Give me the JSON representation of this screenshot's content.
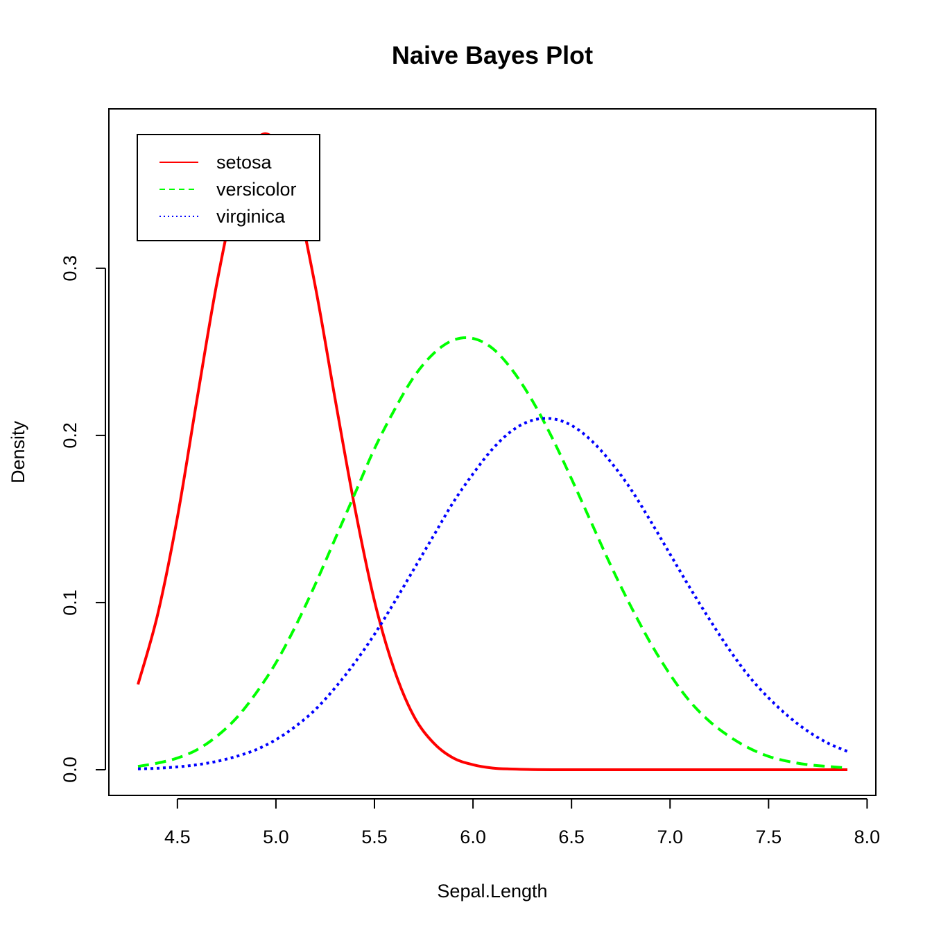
{
  "chart_data": {
    "type": "line",
    "title": "Naive Bayes Plot",
    "xlabel": "Sepal.Length",
    "ylabel": "Density",
    "xlim": [
      4.3,
      7.9
    ],
    "ylim": [
      0.0,
      0.38
    ],
    "xticks": [
      4.5,
      5.0,
      5.5,
      6.0,
      6.5,
      7.0,
      7.5,
      8.0
    ],
    "yticks": [
      0.0,
      0.1,
      0.2,
      0.3
    ],
    "xtick_labels": [
      "4.5",
      "5.0",
      "5.5",
      "6.0",
      "6.5",
      "7.0",
      "7.5",
      "8.0"
    ],
    "ytick_labels": [
      "0.0",
      "0.1",
      "0.2",
      "0.3"
    ],
    "grid": false,
    "legend_position": "top-left",
    "series": [
      {
        "name": "setosa",
        "color": "#ff0000",
        "dash": "solid",
        "x": [
          4.3,
          4.4,
          4.5,
          4.6,
          4.7,
          4.8,
          4.9,
          5.0,
          5.1,
          5.2,
          5.3,
          5.4,
          5.5,
          5.6,
          5.7,
          5.8,
          5.9,
          6.0,
          6.1,
          6.2,
          6.3,
          6.4,
          6.6,
          6.8,
          7.0,
          7.3,
          7.6,
          7.9
        ],
        "y": [
          0.051,
          0.093,
          0.151,
          0.222,
          0.291,
          0.346,
          0.377,
          0.376,
          0.344,
          0.289,
          0.222,
          0.157,
          0.101,
          0.06,
          0.032,
          0.016,
          0.007,
          0.003,
          0.001,
          0.0004,
          0.0001,
          0.0,
          0.0,
          0.0,
          0.0,
          0.0,
          0.0,
          0.0
        ]
      },
      {
        "name": "versicolor",
        "color": "#00ff00",
        "dash": "dashed",
        "x": [
          4.3,
          4.4,
          4.5,
          4.6,
          4.7,
          4.8,
          4.9,
          5.0,
          5.1,
          5.2,
          5.3,
          5.4,
          5.5,
          5.6,
          5.7,
          5.8,
          5.9,
          6.0,
          6.1,
          6.2,
          6.3,
          6.4,
          6.5,
          6.6,
          6.7,
          6.8,
          6.9,
          7.0,
          7.1,
          7.2,
          7.3,
          7.4,
          7.5,
          7.6,
          7.7,
          7.8,
          7.9
        ],
        "y": [
          0.002,
          0.004,
          0.007,
          0.012,
          0.02,
          0.031,
          0.046,
          0.064,
          0.086,
          0.111,
          0.138,
          0.165,
          0.192,
          0.215,
          0.235,
          0.249,
          0.257,
          0.258,
          0.252,
          0.239,
          0.221,
          0.199,
          0.174,
          0.148,
          0.122,
          0.098,
          0.076,
          0.057,
          0.041,
          0.029,
          0.02,
          0.013,
          0.008,
          0.005,
          0.003,
          0.002,
          0.001
        ]
      },
      {
        "name": "virginica",
        "color": "#0000ff",
        "dash": "dotted",
        "x": [
          4.3,
          4.4,
          4.5,
          4.6,
          4.7,
          4.8,
          4.9,
          5.0,
          5.1,
          5.2,
          5.3,
          5.4,
          5.5,
          5.6,
          5.7,
          5.8,
          5.9,
          6.0,
          6.1,
          6.2,
          6.3,
          6.4,
          6.5,
          6.6,
          6.7,
          6.8,
          6.9,
          7.0,
          7.1,
          7.2,
          7.3,
          7.4,
          7.5,
          7.6,
          7.7,
          7.8,
          7.9
        ],
        "y": [
          0.0005,
          0.0009,
          0.0017,
          0.003,
          0.005,
          0.008,
          0.012,
          0.018,
          0.026,
          0.036,
          0.049,
          0.064,
          0.081,
          0.1,
          0.12,
          0.14,
          0.16,
          0.177,
          0.192,
          0.203,
          0.209,
          0.21,
          0.206,
          0.197,
          0.184,
          0.168,
          0.149,
          0.129,
          0.109,
          0.09,
          0.072,
          0.056,
          0.043,
          0.032,
          0.023,
          0.016,
          0.011
        ]
      }
    ]
  }
}
